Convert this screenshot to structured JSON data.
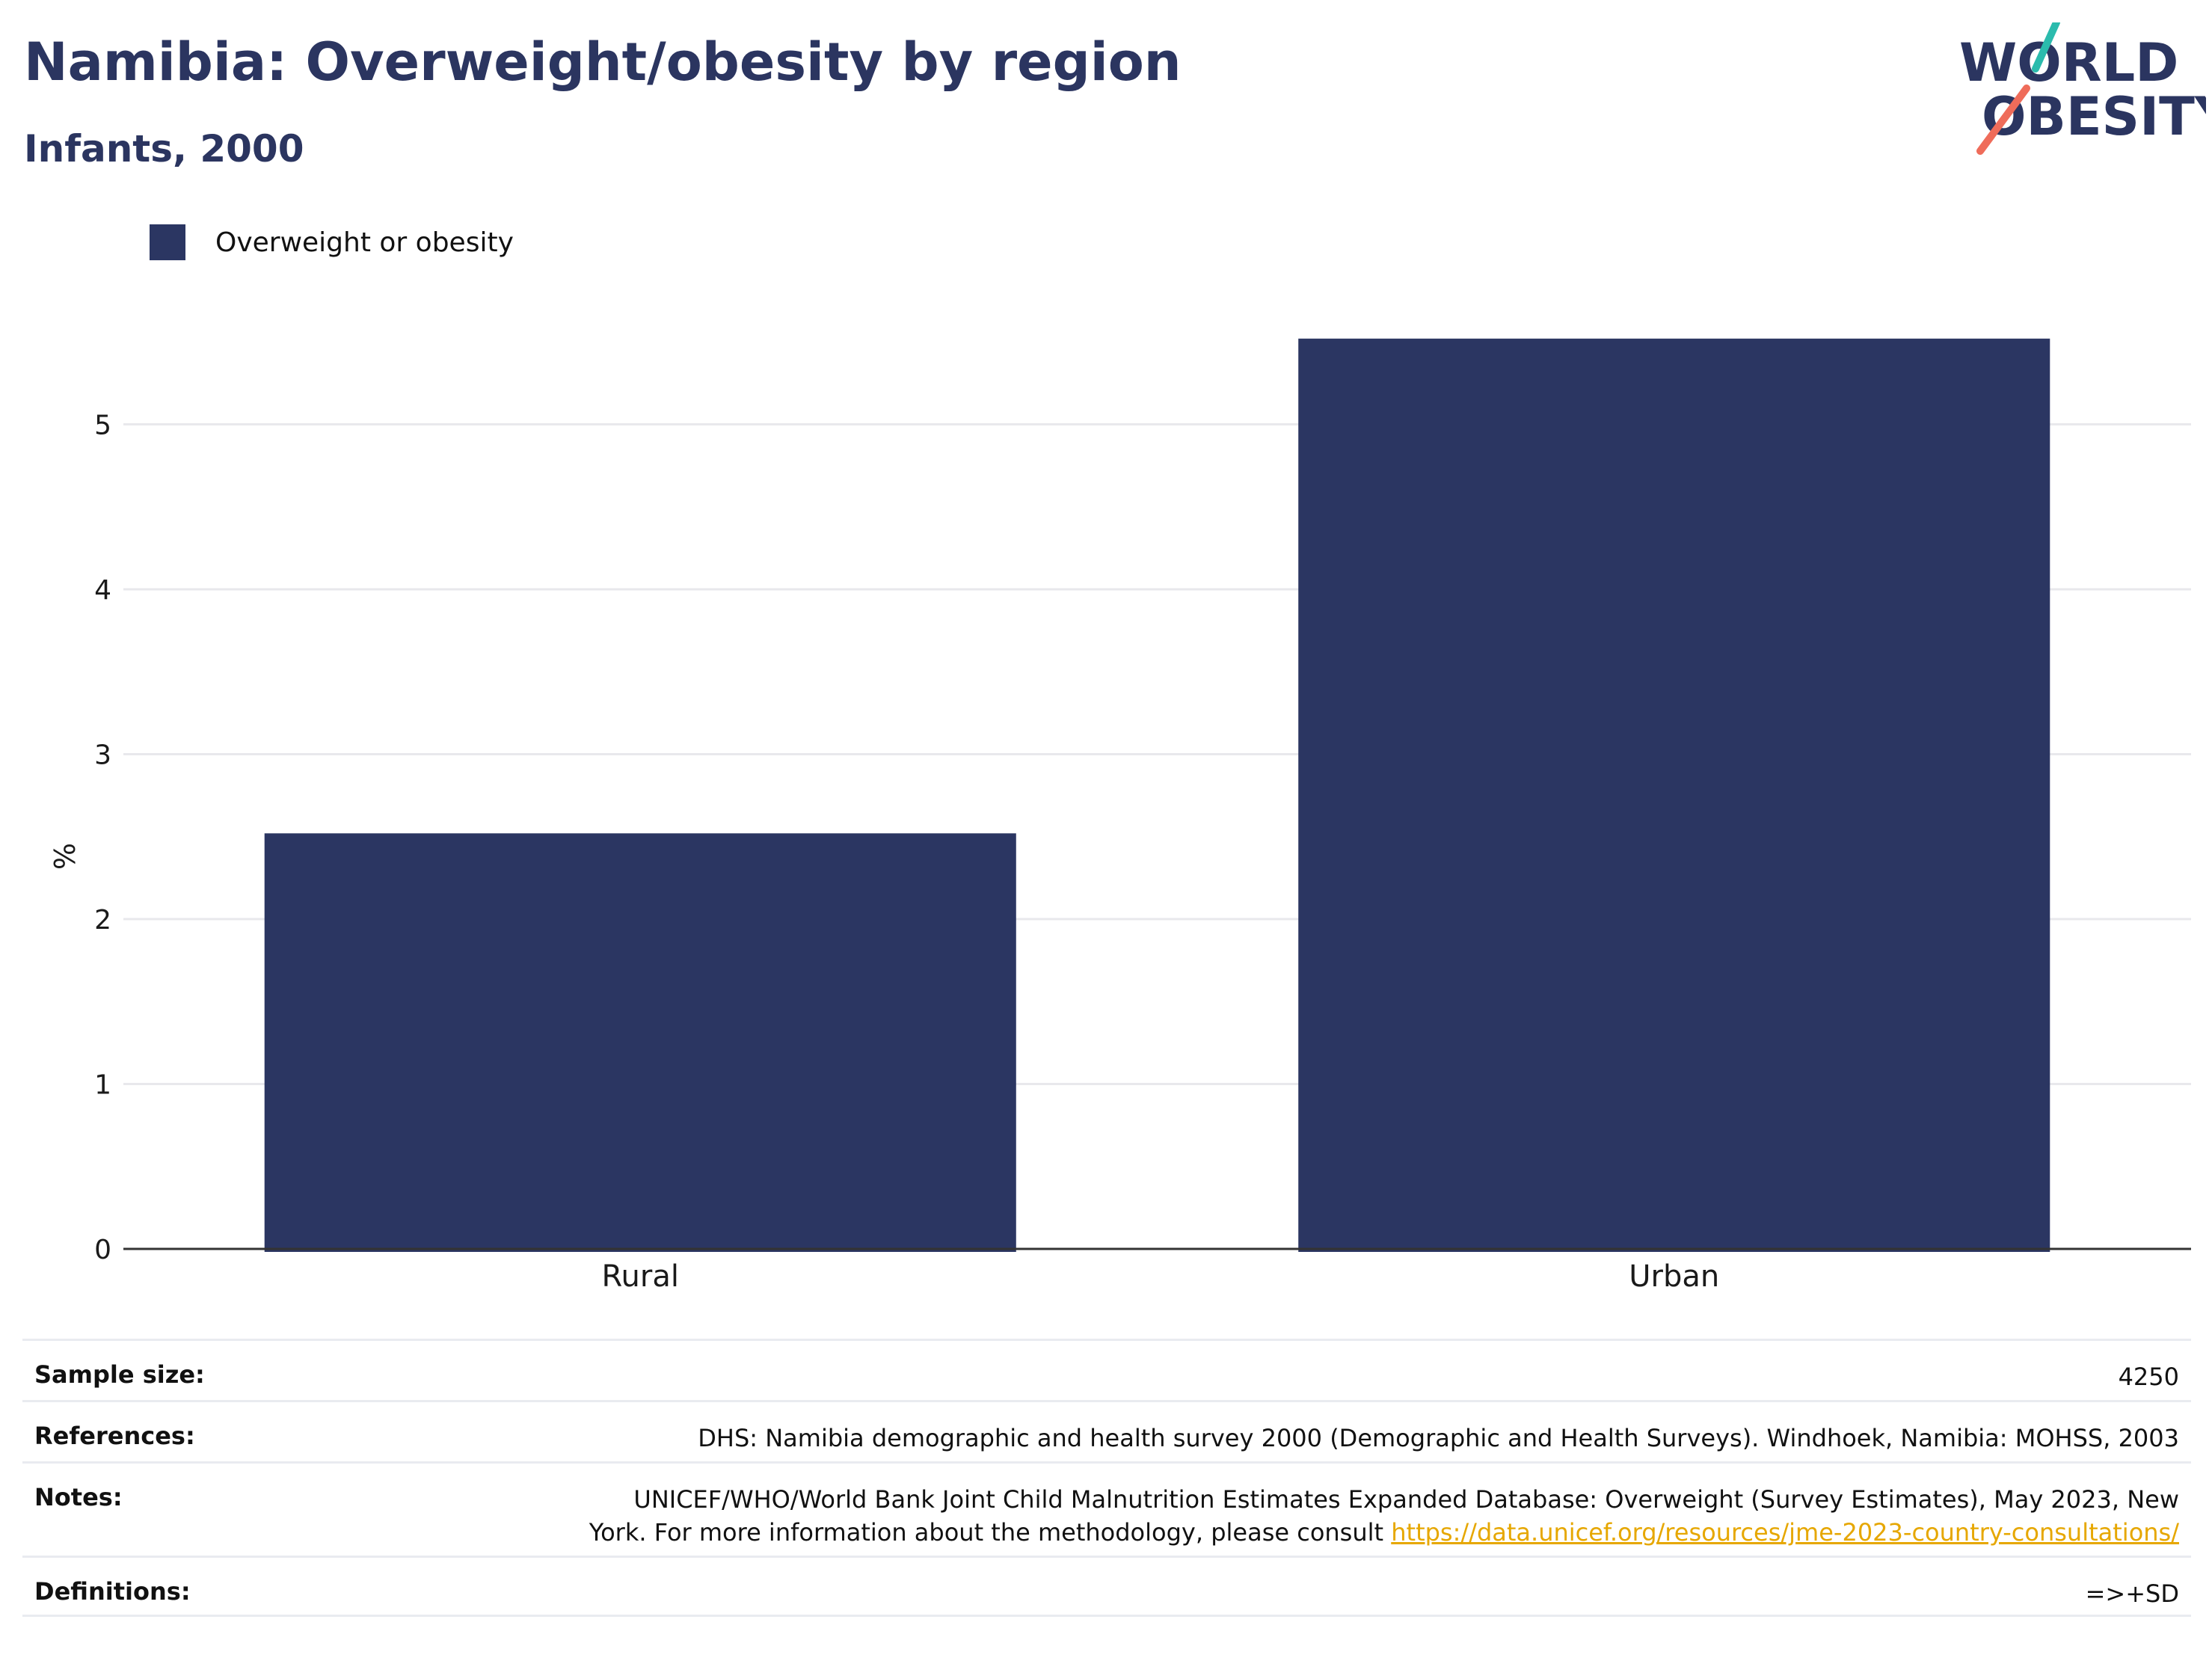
{
  "header": {
    "title": "Namibia: Overweight/obesity by region",
    "subtitle": "Infants, 2000"
  },
  "logo": {
    "line1": "WORLD",
    "line2": "OBESITY",
    "colors": {
      "text": "#2b3560",
      "teal": "#2bbbad",
      "coral": "#ef6c5a"
    }
  },
  "legend": {
    "label": "Overweight or obesity",
    "color": "#2b3662"
  },
  "chart_data": {
    "type": "bar",
    "categories": [
      "Rural",
      "Urban"
    ],
    "series": [
      {
        "name": "Overweight or obesity",
        "values": [
          2.52,
          5.52
        ]
      }
    ],
    "ylabel": "%",
    "xlabel": "",
    "ylim": [
      0,
      5.85
    ],
    "yticks": [
      0,
      1,
      2,
      3,
      4,
      5
    ],
    "grid": true,
    "legend_position": "top-left",
    "bar_color": "#2b3662"
  },
  "info": {
    "sample_size": {
      "key": "Sample size:",
      "value": "4250"
    },
    "references": {
      "key": "References:",
      "value": "DHS: Namibia demographic and health survey 2000 (Demographic and Health Surveys). Windhoek, Namibia: MOHSS, 2003"
    },
    "notes": {
      "key": "Notes:",
      "line1": "UNICEF/WHO/World Bank Joint Child Malnutrition Estimates Expanded Database: Overweight (Survey Estimates), May 2023, New",
      "line2": "York. For more information about the methodology, please consult ",
      "link": "https://data.unicef.org/resources/jme-2023-country-consultations/"
    },
    "definitions": {
      "key": "Definitions:",
      "value": "=>+SD"
    }
  }
}
